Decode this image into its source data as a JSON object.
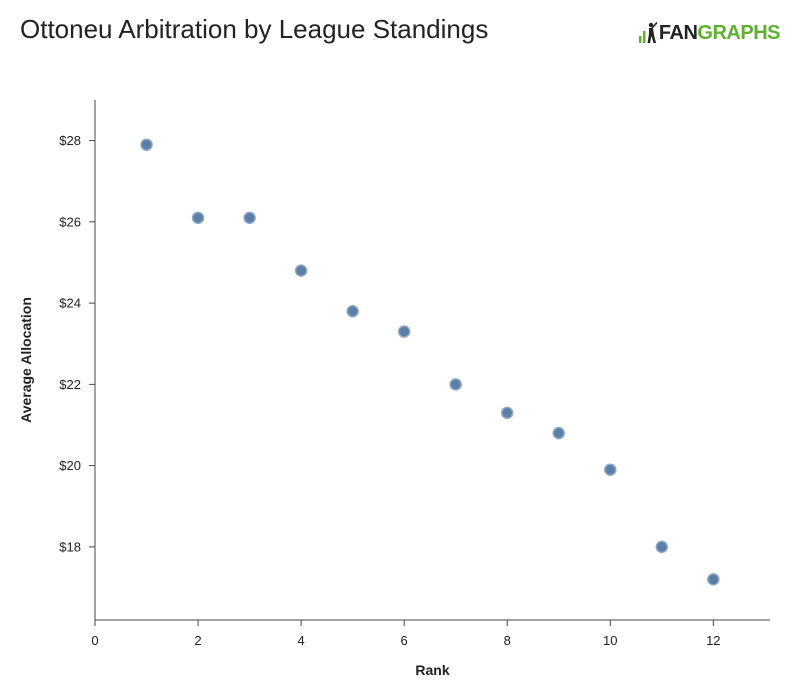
{
  "header": {
    "title": "Ottoneu Arbitration by League Standings",
    "logo_text_1": "FAN",
    "logo_text_2": "GRAPHS"
  },
  "colors": {
    "point_fill": "#5b7fa6",
    "point_stroke": "#8fa8c4",
    "axis": "#444444",
    "logo_green": "#5fb130"
  },
  "chart_data": {
    "type": "scatter",
    "title": "Ottoneu Arbitration by League Standings",
    "xlabel": "Rank",
    "ylabel": "Average Allocation",
    "xlim": [
      0,
      13.1
    ],
    "ylim": [
      16.2,
      29.0
    ],
    "x_ticks": [
      0,
      2,
      4,
      6,
      8,
      10,
      12
    ],
    "x_tick_labels": [
      "0",
      "2",
      "4",
      "6",
      "8",
      "10",
      "12"
    ],
    "y_ticks": [
      18,
      20,
      22,
      24,
      26,
      28
    ],
    "y_tick_labels": [
      "$18",
      "$20",
      "$22",
      "$24",
      "$26",
      "$28"
    ],
    "grid": false,
    "legend": "none",
    "x": [
      1,
      2,
      3,
      4,
      5,
      6,
      7,
      8,
      9,
      10,
      11,
      12
    ],
    "y": [
      27.9,
      26.1,
      26.1,
      24.8,
      23.8,
      23.3,
      22.0,
      21.3,
      20.8,
      19.9,
      18.0,
      17.2
    ]
  }
}
